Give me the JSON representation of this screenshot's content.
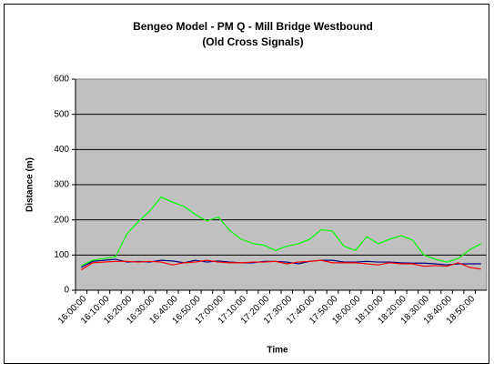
{
  "chart_data": {
    "type": "line",
    "title": "Bengeo Model - PM Q - Mill Bridge Westbound",
    "subtitle": "(Old Cross Signals)",
    "y_label": "Distance (m)",
    "x_label": "Time",
    "categories": [
      "16:00:00",
      null,
      "16:10:00",
      null,
      "16:20:00",
      null,
      "16:30:00",
      null,
      "16:40:00",
      null,
      "16:50:00",
      null,
      "17:00:00",
      null,
      "17:10:00",
      null,
      "17:20:00",
      null,
      "17:30:00",
      null,
      "17:40:00",
      null,
      "17:50:00",
      null,
      "18:00:00",
      null,
      "18:10:00",
      null,
      "18:20:00",
      null,
      "18:30:00",
      null,
      "18:40:00",
      null,
      "18:50:00",
      null
    ],
    "series": [
      {
        "color": "#00ff00",
        "values": [
          70,
          85,
          90,
          95,
          160,
          195,
          225,
          265,
          250,
          238,
          215,
          197,
          208,
          170,
          145,
          133,
          128,
          113,
          125,
          132,
          145,
          172,
          168,
          125,
          113,
          152,
          132,
          145,
          155,
          143,
          100,
          88,
          80,
          90,
          115,
          132
        ]
      },
      {
        "color": "#000080",
        "values": [
          65,
          82,
          85,
          88,
          80,
          82,
          80,
          85,
          83,
          78,
          85,
          80,
          83,
          80,
          78,
          78,
          82,
          82,
          80,
          75,
          82,
          85,
          85,
          80,
          80,
          82,
          80,
          80,
          78,
          77,
          77,
          75,
          72,
          75,
          75,
          75
        ]
      },
      {
        "color": "#ff0000",
        "values": [
          58,
          78,
          80,
          82,
          82,
          80,
          82,
          80,
          72,
          78,
          80,
          85,
          80,
          78,
          78,
          80,
          80,
          82,
          75,
          80,
          82,
          85,
          78,
          78,
          78,
          75,
          72,
          78,
          75,
          75,
          68,
          70,
          68,
          78,
          65,
          60
        ]
      }
    ],
    "ylim": [
      0,
      600
    ],
    "yticks": [
      0,
      100,
      200,
      300,
      400,
      500,
      600
    ],
    "grid": true
  }
}
